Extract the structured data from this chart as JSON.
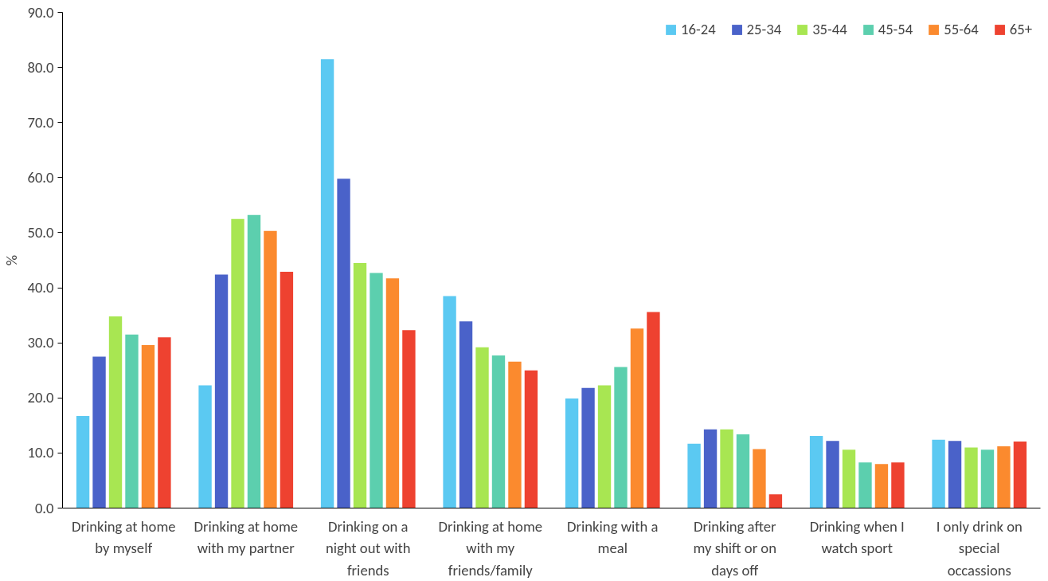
{
  "chart_data": {
    "type": "bar",
    "ylabel": "%",
    "categories": [
      "Drinking at home by myself",
      "Drinking at home with my partner",
      "Drinking on a night out with friends",
      "Drinking at home with my friends/family",
      "Drinking with a meal",
      "Drinking after my shift or on days off",
      "Drinking when I watch sport",
      "I only drink on special occassions"
    ],
    "series": [
      {
        "name": "16-24",
        "color": "#5bc9f2",
        "values": [
          16.7,
          22.3,
          81.5,
          38.5,
          19.9,
          11.7,
          13.1,
          12.4
        ]
      },
      {
        "name": "25-34",
        "color": "#4a62c9",
        "values": [
          27.5,
          42.4,
          59.8,
          33.9,
          21.8,
          14.3,
          12.2,
          12.2
        ]
      },
      {
        "name": "35-44",
        "color": "#a8e652",
        "values": [
          34.8,
          52.5,
          44.5,
          29.2,
          22.3,
          14.3,
          10.6,
          11.0
        ]
      },
      {
        "name": "45-54",
        "color": "#5ccfae",
        "values": [
          31.5,
          53.2,
          42.7,
          27.7,
          25.6,
          13.4,
          8.3,
          10.6
        ]
      },
      {
        "name": "55-64",
        "color": "#fb8a2e",
        "values": [
          29.6,
          50.3,
          41.7,
          26.6,
          32.6,
          10.7,
          8.0,
          11.2
        ]
      },
      {
        "name": "65+",
        "color": "#ee4230",
        "values": [
          31.0,
          42.9,
          32.3,
          25.0,
          35.6,
          2.5,
          8.3,
          12.1
        ]
      }
    ],
    "ylim": [
      0,
      90
    ],
    "yticks": [
      {
        "value": 0,
        "label": "0.0"
      },
      {
        "value": 10,
        "label": "10.0"
      },
      {
        "value": 20,
        "label": "20.0"
      },
      {
        "value": 30,
        "label": "30.0"
      },
      {
        "value": 40,
        "label": "40.0"
      },
      {
        "value": 50,
        "label": "50.0"
      },
      {
        "value": 60,
        "label": "60.0"
      },
      {
        "value": 70,
        "label": "70.0"
      },
      {
        "value": 80,
        "label": "80.0"
      },
      {
        "value": 90,
        "label": "90.0"
      }
    ],
    "grid": false,
    "legend": "top right"
  }
}
